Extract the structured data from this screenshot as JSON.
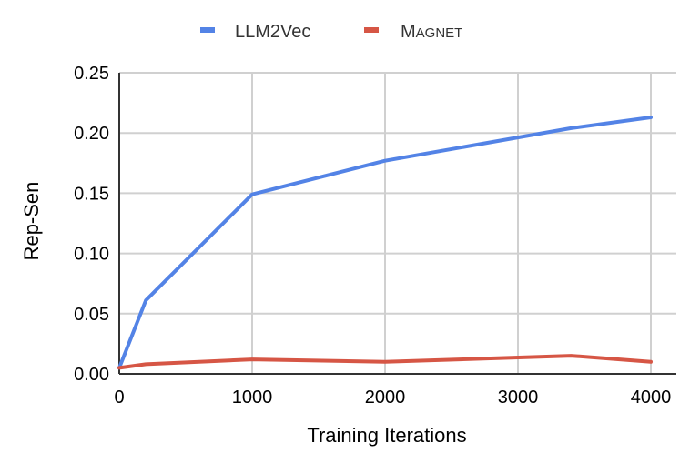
{
  "chart_data": {
    "type": "line",
    "xlabel": "Training Iterations",
    "ylabel": "Rep-Sen",
    "xlim": [
      0,
      4000
    ],
    "ylim": [
      0,
      0.25
    ],
    "x_ticks": [
      0,
      1000,
      2000,
      3000,
      4000
    ],
    "x_tick_labels": [
      "0",
      "1000",
      "2000",
      "3000",
      "4000"
    ],
    "y_ticks": [
      0,
      0.05,
      0.1,
      0.15,
      0.2,
      0.25
    ],
    "y_tick_labels": [
      "0.00",
      "0.05",
      "0.10",
      "0.15",
      "0.20",
      "0.25"
    ],
    "grid": true,
    "legend_position": "top",
    "series": [
      {
        "name": "LLM2Vec",
        "color": "#5383e6",
        "x": [
          0,
          200,
          1000,
          2000,
          3400,
          4000
        ],
        "y": [
          0.005,
          0.061,
          0.149,
          0.177,
          0.204,
          0.213
        ]
      },
      {
        "name": "MAGNET",
        "color": "#d65645",
        "x": [
          0,
          200,
          1000,
          2000,
          3400,
          4000
        ],
        "y": [
          0.005,
          0.008,
          0.012,
          0.01,
          0.015,
          0.01
        ]
      }
    ]
  }
}
